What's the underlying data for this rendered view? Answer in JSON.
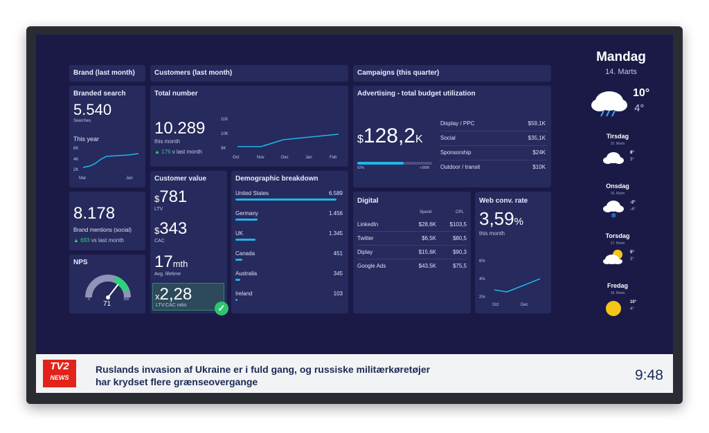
{
  "brand": {
    "header": "Brand (last month)",
    "search_title": "Branded search",
    "search_value": "5.540",
    "search_unit": "Searches",
    "year_label": "This year",
    "year_ticks": [
      "6K",
      "4K",
      "2K"
    ],
    "year_months": [
      "Mar",
      "Jan"
    ],
    "mentions_value": "8.178",
    "mentions_label": "Brand mentions (social)",
    "mentions_change": "693",
    "mentions_change_label": "vs last month",
    "nps_title": "NPS",
    "nps_value": "71",
    "nps_min": "0",
    "nps_max": "100",
    "nps_level": 0.71
  },
  "customers": {
    "header": "Customers (last month)",
    "total_title": "Total number",
    "total_value": "10.289",
    "total_sub": "this month",
    "total_change": "176",
    "total_change_label": "v last month",
    "chart_y": [
      "11K",
      "10K",
      "9K"
    ],
    "chart_x": [
      "Oct",
      "Nov",
      "Dec",
      "Jan",
      "Feb"
    ],
    "value_title": "Customer value",
    "ltv_value": "781",
    "ltv_label": "LTV",
    "cac_value": "343",
    "cac_label": "CAC",
    "currency": "$",
    "life_value": "17",
    "life_unit": "mth",
    "life_label": "Avg. lifetime",
    "ratio_prefix": "x",
    "ratio_value": "2,28",
    "ratio_label": "LTV:CAC ratio",
    "demo_title": "Demographic breakdown",
    "demo": [
      {
        "country": "United States",
        "value": "6.589",
        "frac": 1
      },
      {
        "country": "Germany",
        "value": "1.456",
        "frac": 0.22
      },
      {
        "country": "UK",
        "value": "1.345",
        "frac": 0.2
      },
      {
        "country": "Canada",
        "value": "451",
        "frac": 0.07
      },
      {
        "country": "Australia",
        "value": "345",
        "frac": 0.05
      },
      {
        "country": "Ireland",
        "value": "103",
        "frac": 0.015
      }
    ]
  },
  "campaigns": {
    "header": "Campaigns (this quarter)",
    "adv_title": "Advertising - total budget utilization",
    "adv_currency": "$",
    "adv_value": "128,2",
    "adv_unit": "K",
    "adv_pct": "62%",
    "adv_target": "+300K",
    "adv_level": 0.62,
    "adv_rows": [
      {
        "label": "Display / PPC",
        "value": "$59,1K"
      },
      {
        "label": "Social",
        "value": "$35,1K"
      },
      {
        "label": "Sponsorship",
        "value": "$24K"
      },
      {
        "label": "Outdoor / transit",
        "value": "$10K"
      }
    ],
    "digital_title": "Digital",
    "digital_cols": [
      "Spend",
      "CPL"
    ],
    "digital_rows": [
      {
        "name": "LinkedIn",
        "spend": "$28,6K",
        "cpl": "$103,5"
      },
      {
        "name": "Twitter",
        "spend": "$6,5K",
        "cpl": "$80,5"
      },
      {
        "name": "Diplay",
        "spend": "$15,6K",
        "cpl": "$90,3"
      },
      {
        "name": "Google Ads",
        "spend": "$43,5K",
        "cpl": "$75,5"
      }
    ],
    "web_title": "Web conv. rate",
    "web_value": "3,59",
    "web_unit": "%",
    "web_sub": "this month",
    "web_y": [
      "6%",
      "4%",
      "2%"
    ],
    "web_x": [
      "Oct",
      "Dec"
    ]
  },
  "weather": {
    "day": "Mandag",
    "date": "14. Marts",
    "temp_high": "10°",
    "temp_low": "4°",
    "forecast": [
      {
        "day": "Tirsdag",
        "date": "15. Marts",
        "high": "8°",
        "low": "3°",
        "icon": "cloud-icon"
      },
      {
        "day": "Onsdag",
        "date": "16. Marts",
        "high": "-2°",
        "low": "-4°",
        "icon": "snow-cloud-icon"
      },
      {
        "day": "Torsdag",
        "date": "17. Marts",
        "high": "5°",
        "low": "3°",
        "icon": "sun-cloud-icon"
      },
      {
        "day": "Fredag",
        "date": "18. Marts",
        "high": "10°",
        "low": "4°",
        "icon": "sun-icon"
      }
    ]
  },
  "ticker": {
    "logo_top": "TV2",
    "logo_bottom": "NEWS",
    "line1": "Ruslands invasion af Ukraine er i fuld gang, og russiske militærkøretøjer",
    "line2": "har krydset flere grænseovergange",
    "time": "9:48"
  },
  "colors": {
    "bg": "#1b1a47",
    "panel": "#262a5c",
    "accent": "#1fb7e8",
    "positive": "#2fd17a",
    "tv2_red": "#e2231a"
  }
}
